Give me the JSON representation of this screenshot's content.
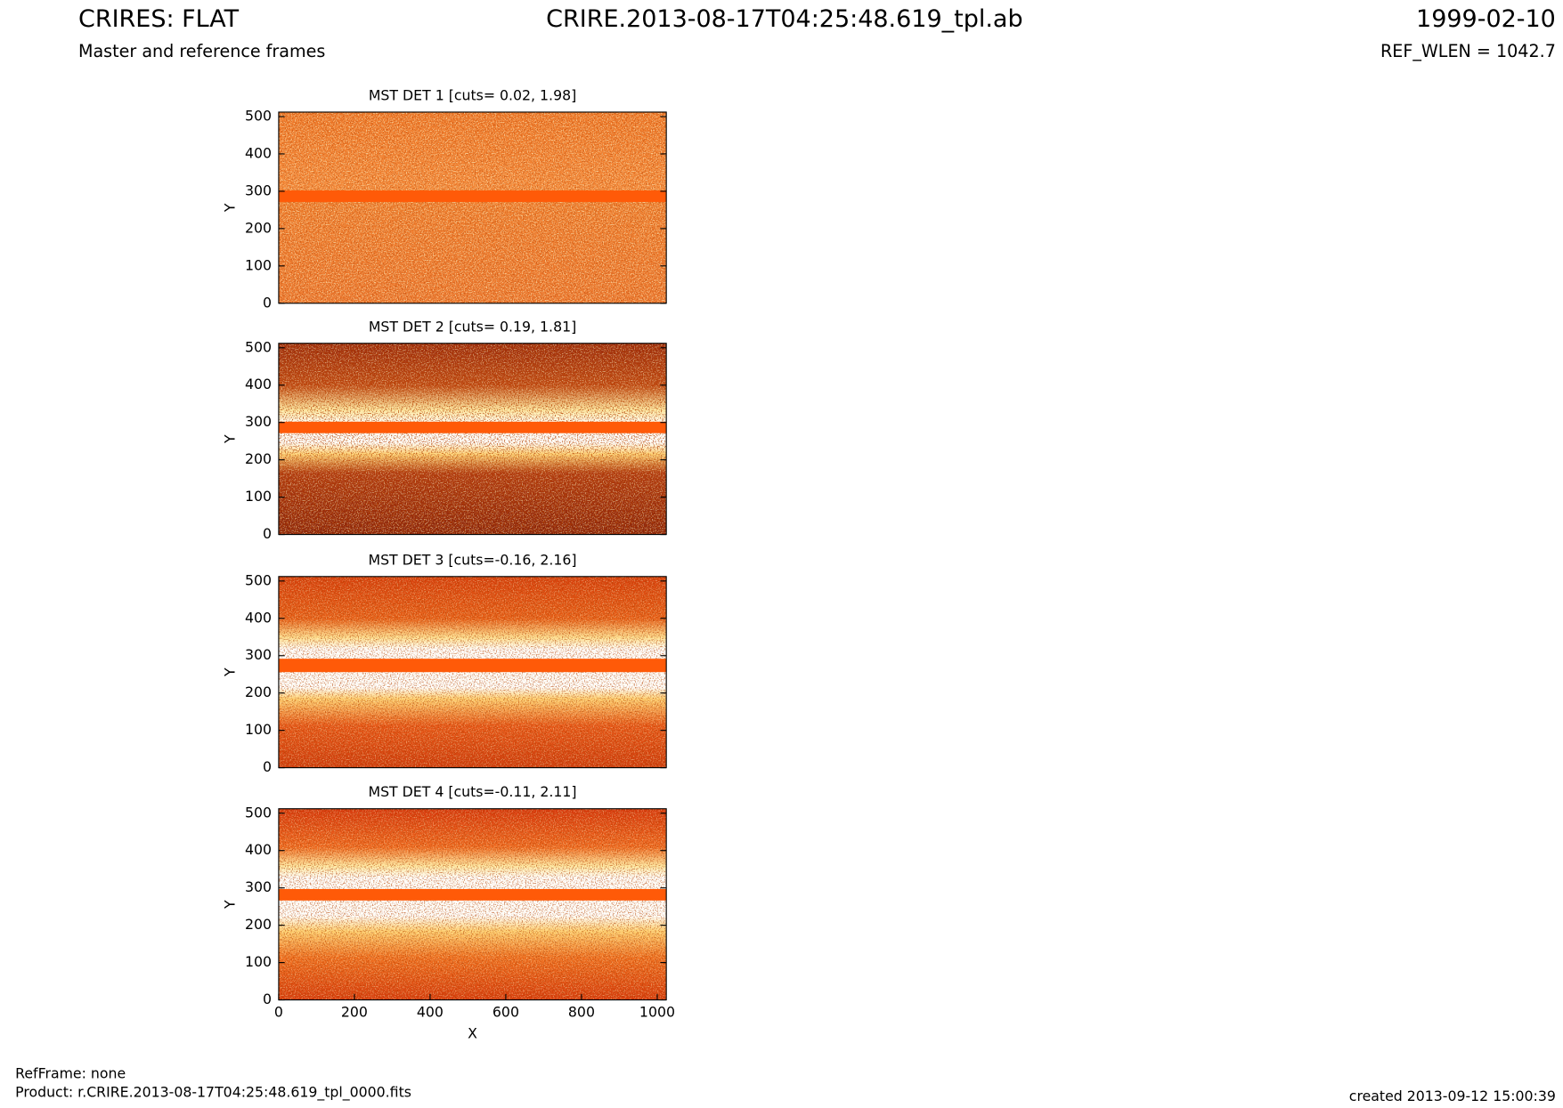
{
  "header": {
    "title": "CRIRES: FLAT",
    "center_title": "CRIRE.2013-08-17T04:25:48.619_tpl.ab",
    "date": "1999-02-10",
    "subtitle": "Master and reference frames",
    "ref_wlen": "REF_WLEN = 1042.7"
  },
  "footer": {
    "ref_frame": "RefFrame: none",
    "product": "Product: r.CRIRE.2013-08-17T04:25:48.619_tpl_0000.fits",
    "created": "created 2013-09-12 15:00:39"
  },
  "chart_data": [
    {
      "type": "image",
      "title": "MST DET 1 [cuts= 0.02, 1.98]",
      "ylabel": "Y",
      "xlim": [
        0,
        1024
      ],
      "ylim": [
        0,
        512
      ],
      "yticks": [
        0,
        100,
        200,
        300,
        400,
        500
      ]
    },
    {
      "type": "image",
      "title": "MST DET 2 [cuts= 0.19, 1.81]",
      "ylabel": "Y",
      "xlim": [
        0,
        1024
      ],
      "ylim": [
        0,
        512
      ],
      "yticks": [
        0,
        100,
        200,
        300,
        400,
        500
      ]
    },
    {
      "type": "image",
      "title": "MST DET 3 [cuts=-0.16, 2.16]",
      "ylabel": "Y",
      "xlim": [
        0,
        1024
      ],
      "ylim": [
        0,
        512
      ],
      "yticks": [
        0,
        100,
        200,
        300,
        400,
        500
      ]
    },
    {
      "type": "image",
      "title": "MST DET 4 [cuts=-0.11, 2.11]",
      "ylabel": "Y",
      "xlabel": "X",
      "xlim": [
        0,
        1024
      ],
      "ylim": [
        0,
        512
      ],
      "yticks": [
        0,
        100,
        200,
        300,
        400,
        500
      ],
      "xticks": [
        0,
        200,
        400,
        600,
        800,
        1000
      ]
    }
  ]
}
